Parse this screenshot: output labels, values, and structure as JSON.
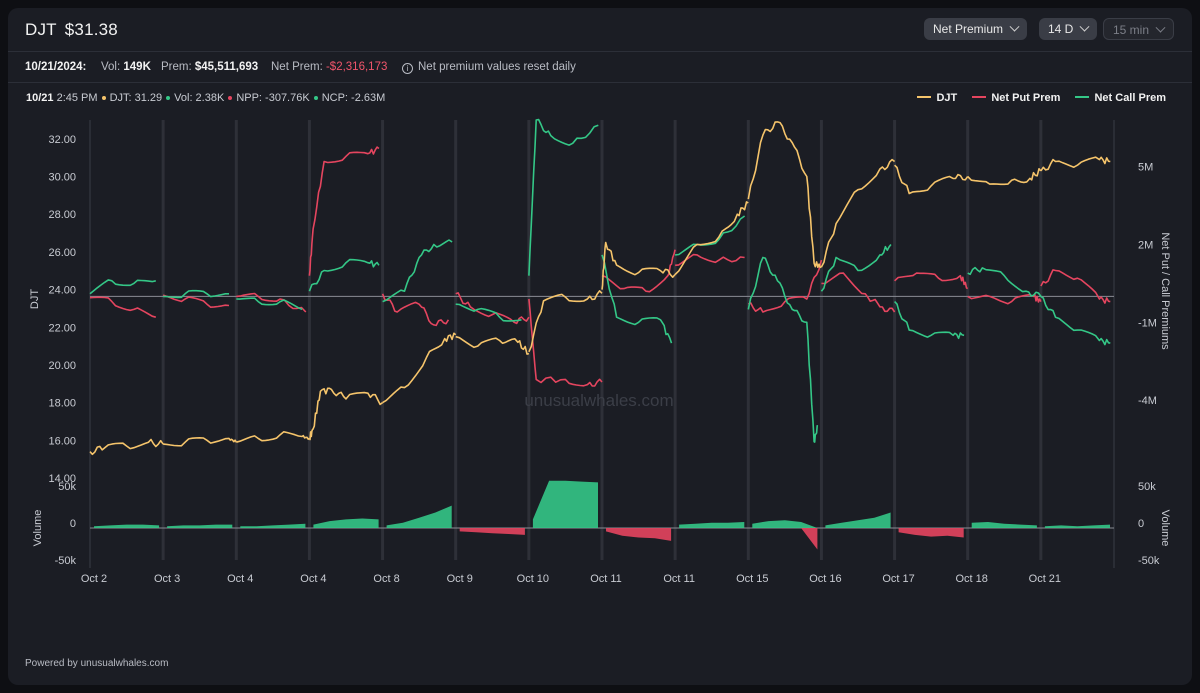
{
  "header": {
    "symbol": "DJT",
    "price": "$31.38",
    "controls": {
      "metric": "Net Premium",
      "range": "14 D",
      "interval": "15 min"
    }
  },
  "stats": {
    "date": "10/21/2024:",
    "vol_label": "Vol:",
    "vol_value": "149K",
    "prem_label": "Prem:",
    "prem_value": "$45,511,693",
    "net_label": "Net Prem:",
    "net_value": "-$2,316,173",
    "note": "Net premium values reset daily"
  },
  "hover": {
    "date": "10/21",
    "time": "2:45 PM",
    "djt": "DJT: 31.29",
    "vol": "Vol: 2.38K",
    "npp": "NPP: -307.76K",
    "ncp": "NCP: -2.63M"
  },
  "legend": {
    "djt": "DJT",
    "put": "Net Put Prem",
    "call": "Net Call Prem"
  },
  "colors": {
    "djt": "#f5c46b",
    "put": "#e5455f",
    "call": "#34c787",
    "bg": "#1b1d24"
  },
  "watermark": "unusualwhales.com",
  "footer": "Powered by unusualwhales.com",
  "chart_data": {
    "type": "line",
    "x_labels": [
      "Oct 2",
      "Oct 3",
      "Oct 4",
      "Oct 4",
      "Oct 8",
      "Oct 9",
      "Oct 10",
      "Oct 11",
      "Oct 11",
      "Oct 15",
      "Oct 16",
      "Oct 17",
      "Oct 18",
      "Oct 21"
    ],
    "left_axis": {
      "label": "DJT",
      "ticks": [
        "32.00",
        "30.00",
        "28.00",
        "26.00",
        "24.00",
        "22.00",
        "20.00",
        "18.00",
        "16.00",
        "14.00"
      ],
      "range": [
        14,
        33
      ]
    },
    "right_axis": {
      "label": "Net Put / Call Premiums",
      "ticks": [
        "5M",
        "2M",
        "-1M",
        "-4M"
      ],
      "tick_values": [
        5,
        2,
        -1,
        -4
      ],
      "range": [
        -7.0,
        6.8
      ]
    },
    "volume_axis": {
      "label": "Volume",
      "ticks": [
        "50k",
        "0",
        "-50k"
      ],
      "tick_values": [
        50,
        0,
        -50
      ],
      "range": [
        -50,
        50
      ]
    },
    "series": [
      {
        "name": "DJT",
        "axis": "left",
        "segments": [
          [
            [
              0,
              15.4
            ],
            [
              0.2,
              15.6
            ],
            [
              0.5,
              15.7
            ],
            [
              0.8,
              15.9
            ],
            [
              1,
              15.8
            ]
          ],
          [
            [
              1,
              15.8
            ],
            [
              1.3,
              15.9
            ],
            [
              1.6,
              16.0
            ],
            [
              1.9,
              16.1
            ],
            [
              2,
              15.9
            ]
          ],
          [
            [
              2,
              15.9
            ],
            [
              2.3,
              16.1
            ],
            [
              2.6,
              16.3
            ],
            [
              2.9,
              16.2
            ],
            [
              3,
              16.1
            ]
          ],
          [
            [
              3,
              16.1
            ],
            [
              3.05,
              16.6
            ],
            [
              3.15,
              18.6
            ],
            [
              3.3,
              18.7
            ],
            [
              3.5,
              18.2
            ],
            [
              3.8,
              18.5
            ],
            [
              4,
              18.0
            ]
          ],
          [
            [
              4,
              18.0
            ],
            [
              4.3,
              18.8
            ],
            [
              4.6,
              20.4
            ],
            [
              4.85,
              21.4
            ],
            [
              5,
              21.6
            ]
          ],
          [
            [
              5,
              21.5
            ],
            [
              5.3,
              21.0
            ],
            [
              5.6,
              21.3
            ],
            [
              5.85,
              21.2
            ],
            [
              6,
              20.6
            ]
          ],
          [
            [
              6,
              20.7
            ],
            [
              6.2,
              23.4
            ],
            [
              6.5,
              23.6
            ],
            [
              6.8,
              23.5
            ],
            [
              7,
              23.8
            ]
          ],
          [
            [
              7,
              24.0
            ],
            [
              7.05,
              26.5
            ],
            [
              7.2,
              25.3
            ],
            [
              7.5,
              24.9
            ],
            [
              7.8,
              25.0
            ],
            [
              8,
              24.8
            ]
          ],
          [
            [
              8,
              24.8
            ],
            [
              8.3,
              26.4
            ],
            [
              8.6,
              26.8
            ],
            [
              8.85,
              28.0
            ],
            [
              9,
              28.6
            ]
          ],
          [
            [
              9,
              28.8
            ],
            [
              9.2,
              32.2
            ],
            [
              9.4,
              32.9
            ],
            [
              9.6,
              31.8
            ],
            [
              9.8,
              30.0
            ],
            [
              9.9,
              25.4
            ],
            [
              10,
              25.2
            ]
          ],
          [
            [
              10,
              25.2
            ],
            [
              10.2,
              27.5
            ],
            [
              10.5,
              29.3
            ],
            [
              10.8,
              30.4
            ],
            [
              11,
              30.8
            ]
          ],
          [
            [
              11,
              30.6
            ],
            [
              11.2,
              29.1
            ],
            [
              11.5,
              29.5
            ],
            [
              11.8,
              29.9
            ],
            [
              12,
              30.0
            ]
          ],
          [
            [
              12,
              30.0
            ],
            [
              12.3,
              29.6
            ],
            [
              12.6,
              29.8
            ],
            [
              12.85,
              29.9
            ],
            [
              13,
              30.3
            ]
          ],
          [
            [
              13,
              30.3
            ],
            [
              13.2,
              30.8
            ],
            [
              13.5,
              30.6
            ],
            [
              13.8,
              30.9
            ],
            [
              13.95,
              30.8
            ]
          ]
        ]
      },
      {
        "name": "Net Put Prem",
        "axis": "right",
        "segments": [
          [
            [
              0,
              -0.05
            ],
            [
              0.3,
              -0.2
            ],
            [
              0.6,
              -0.5
            ],
            [
              0.9,
              -0.8
            ]
          ],
          [
            [
              1,
              0.05
            ],
            [
              1.3,
              -0.1
            ],
            [
              1.6,
              -0.3
            ],
            [
              1.9,
              -0.35
            ]
          ],
          [
            [
              2,
              0.0
            ],
            [
              2.3,
              0.0
            ],
            [
              2.6,
              -0.1
            ],
            [
              2.95,
              -0.6
            ]
          ],
          [
            [
              3,
              0.8
            ],
            [
              3.05,
              2.6
            ],
            [
              3.2,
              5.2
            ],
            [
              3.5,
              5.4
            ],
            [
              3.8,
              5.5
            ],
            [
              3.95,
              5.7
            ]
          ],
          [
            [
              4,
              0.1
            ],
            [
              4.2,
              -0.6
            ],
            [
              4.5,
              -0.3
            ],
            [
              4.7,
              -1.1
            ],
            [
              4.9,
              -0.9
            ]
          ],
          [
            [
              5,
              0.1
            ],
            [
              5.2,
              -0.4
            ],
            [
              5.5,
              -0.7
            ],
            [
              5.8,
              -1.0
            ],
            [
              6,
              -0.8
            ]
          ],
          [
            [
              6,
              -0.1
            ],
            [
              6.1,
              -3.2
            ],
            [
              6.5,
              -3.2
            ],
            [
              6.8,
              -3.4
            ],
            [
              7,
              -3.3
            ]
          ],
          [
            [
              7,
              0.8
            ],
            [
              7.3,
              0.3
            ],
            [
              7.6,
              0.2
            ],
            [
              7.9,
              0.8
            ],
            [
              8,
              1.8
            ]
          ],
          [
            [
              8,
              1.2
            ],
            [
              8.3,
              1.6
            ],
            [
              8.6,
              1.4
            ],
            [
              8.95,
              1.5
            ]
          ],
          [
            [
              9,
              -0.3
            ],
            [
              9.2,
              -0.6
            ],
            [
              9.5,
              -0.2
            ],
            [
              9.8,
              -0.1
            ],
            [
              10,
              1.4
            ]
          ],
          [
            [
              10,
              0.5
            ],
            [
              10.3,
              0.9
            ],
            [
              10.6,
              0.1
            ],
            [
              10.8,
              -0.4
            ],
            [
              11,
              -0.6
            ]
          ],
          [
            [
              11,
              0.6
            ],
            [
              11.3,
              0.9
            ],
            [
              11.6,
              0.7
            ],
            [
              11.9,
              0.8
            ],
            [
              12,
              0.3
            ]
          ],
          [
            [
              12,
              0.0
            ],
            [
              12.3,
              0.0
            ],
            [
              12.6,
              -0.2
            ],
            [
              12.9,
              0.0
            ],
            [
              13,
              -0.2
            ]
          ],
          [
            [
              13,
              0.4
            ],
            [
              13.2,
              1.0
            ],
            [
              13.5,
              0.7
            ],
            [
              13.8,
              -0.1
            ],
            [
              13.95,
              -0.2
            ]
          ]
        ]
      },
      {
        "name": "Net Call Prem",
        "axis": "right",
        "segments": [
          [
            [
              0,
              0.1
            ],
            [
              0.3,
              0.6
            ],
            [
              0.6,
              0.5
            ],
            [
              0.9,
              0.6
            ]
          ],
          [
            [
              1,
              0.0
            ],
            [
              1.3,
              0.1
            ],
            [
              1.6,
              0.1
            ],
            [
              1.9,
              0.1
            ]
          ],
          [
            [
              2,
              -0.1
            ],
            [
              2.3,
              -0.2
            ],
            [
              2.6,
              -0.2
            ],
            [
              2.9,
              -0.5
            ]
          ],
          [
            [
              3,
              0.2
            ],
            [
              3.2,
              1.0
            ],
            [
              3.5,
              1.3
            ],
            [
              3.8,
              1.3
            ],
            [
              3.95,
              1.2
            ]
          ],
          [
            [
              4,
              -0.2
            ],
            [
              4.3,
              0.2
            ],
            [
              4.5,
              1.5
            ],
            [
              4.7,
              2.0
            ],
            [
              4.95,
              2.1
            ]
          ],
          [
            [
              5,
              -0.3
            ],
            [
              5.3,
              -0.5
            ],
            [
              5.6,
              -0.8
            ],
            [
              5.9,
              -0.9
            ]
          ],
          [
            [
              6,
              0.8
            ],
            [
              6.1,
              6.8
            ],
            [
              6.3,
              6.2
            ],
            [
              6.6,
              5.9
            ],
            [
              6.95,
              6.6
            ]
          ],
          [
            [
              7,
              1.6
            ],
            [
              7.2,
              -0.8
            ],
            [
              7.5,
              -1.0
            ],
            [
              7.8,
              -0.9
            ],
            [
              7.95,
              -1.8
            ]
          ],
          [
            [
              8,
              1.6
            ],
            [
              8.3,
              2.0
            ],
            [
              8.6,
              2.2
            ],
            [
              8.95,
              3.1
            ]
          ],
          [
            [
              9,
              -0.5
            ],
            [
              9.2,
              1.5
            ],
            [
              9.4,
              0.6
            ],
            [
              9.6,
              -0.5
            ],
            [
              9.8,
              -1.0
            ],
            [
              9.9,
              -5.6
            ],
            [
              9.95,
              -5.0
            ]
          ],
          [
            [
              10,
              0.2
            ],
            [
              10.2,
              1.5
            ],
            [
              10.5,
              1.0
            ],
            [
              10.8,
              1.6
            ],
            [
              10.95,
              2.0
            ]
          ],
          [
            [
              11,
              -0.2
            ],
            [
              11.2,
              -1.3
            ],
            [
              11.5,
              -1.5
            ],
            [
              11.8,
              -1.5
            ],
            [
              11.95,
              -1.5
            ]
          ],
          [
            [
              12,
              0.9
            ],
            [
              12.2,
              1.1
            ],
            [
              12.5,
              0.8
            ],
            [
              12.8,
              0.2
            ],
            [
              13,
              0.0
            ]
          ],
          [
            [
              13,
              0.0
            ],
            [
              13.2,
              -0.8
            ],
            [
              13.5,
              -1.3
            ],
            [
              13.8,
              -1.7
            ],
            [
              13.95,
              -1.8
            ]
          ]
        ]
      }
    ],
    "volume": {
      "series": [
        {
          "day": 0,
          "values": [
            2,
            3,
            4,
            4,
            3
          ]
        },
        {
          "day": 1,
          "values": [
            2,
            3,
            3,
            4,
            4
          ]
        },
        {
          "day": 2,
          "values": [
            2,
            2,
            3,
            4,
            5
          ]
        },
        {
          "day": 3,
          "values": [
            4,
            8,
            10,
            11,
            10
          ]
        },
        {
          "day": 4,
          "values": [
            3,
            6,
            12,
            18,
            26
          ]
        },
        {
          "day": 5,
          "values": [
            -4,
            -5,
            -6,
            -7,
            -8
          ]
        },
        {
          "day": 6,
          "values": [
            10,
            55,
            55,
            54,
            53
          ]
        },
        {
          "day": 7,
          "values": [
            -4,
            -9,
            -11,
            -12,
            -15
          ]
        },
        {
          "day": 8,
          "values": [
            4,
            5,
            6,
            6,
            7
          ]
        },
        {
          "day": 9,
          "values": [
            5,
            8,
            9,
            7,
            -25
          ]
        },
        {
          "day": 10,
          "values": [
            3,
            6,
            9,
            12,
            18
          ]
        },
        {
          "day": 11,
          "values": [
            -5,
            -8,
            -10,
            -9,
            -11
          ]
        },
        {
          "day": 12,
          "values": [
            6,
            7,
            5,
            4,
            3
          ]
        },
        {
          "day": 13,
          "values": [
            2,
            3,
            2,
            3,
            4
          ]
        }
      ]
    }
  }
}
